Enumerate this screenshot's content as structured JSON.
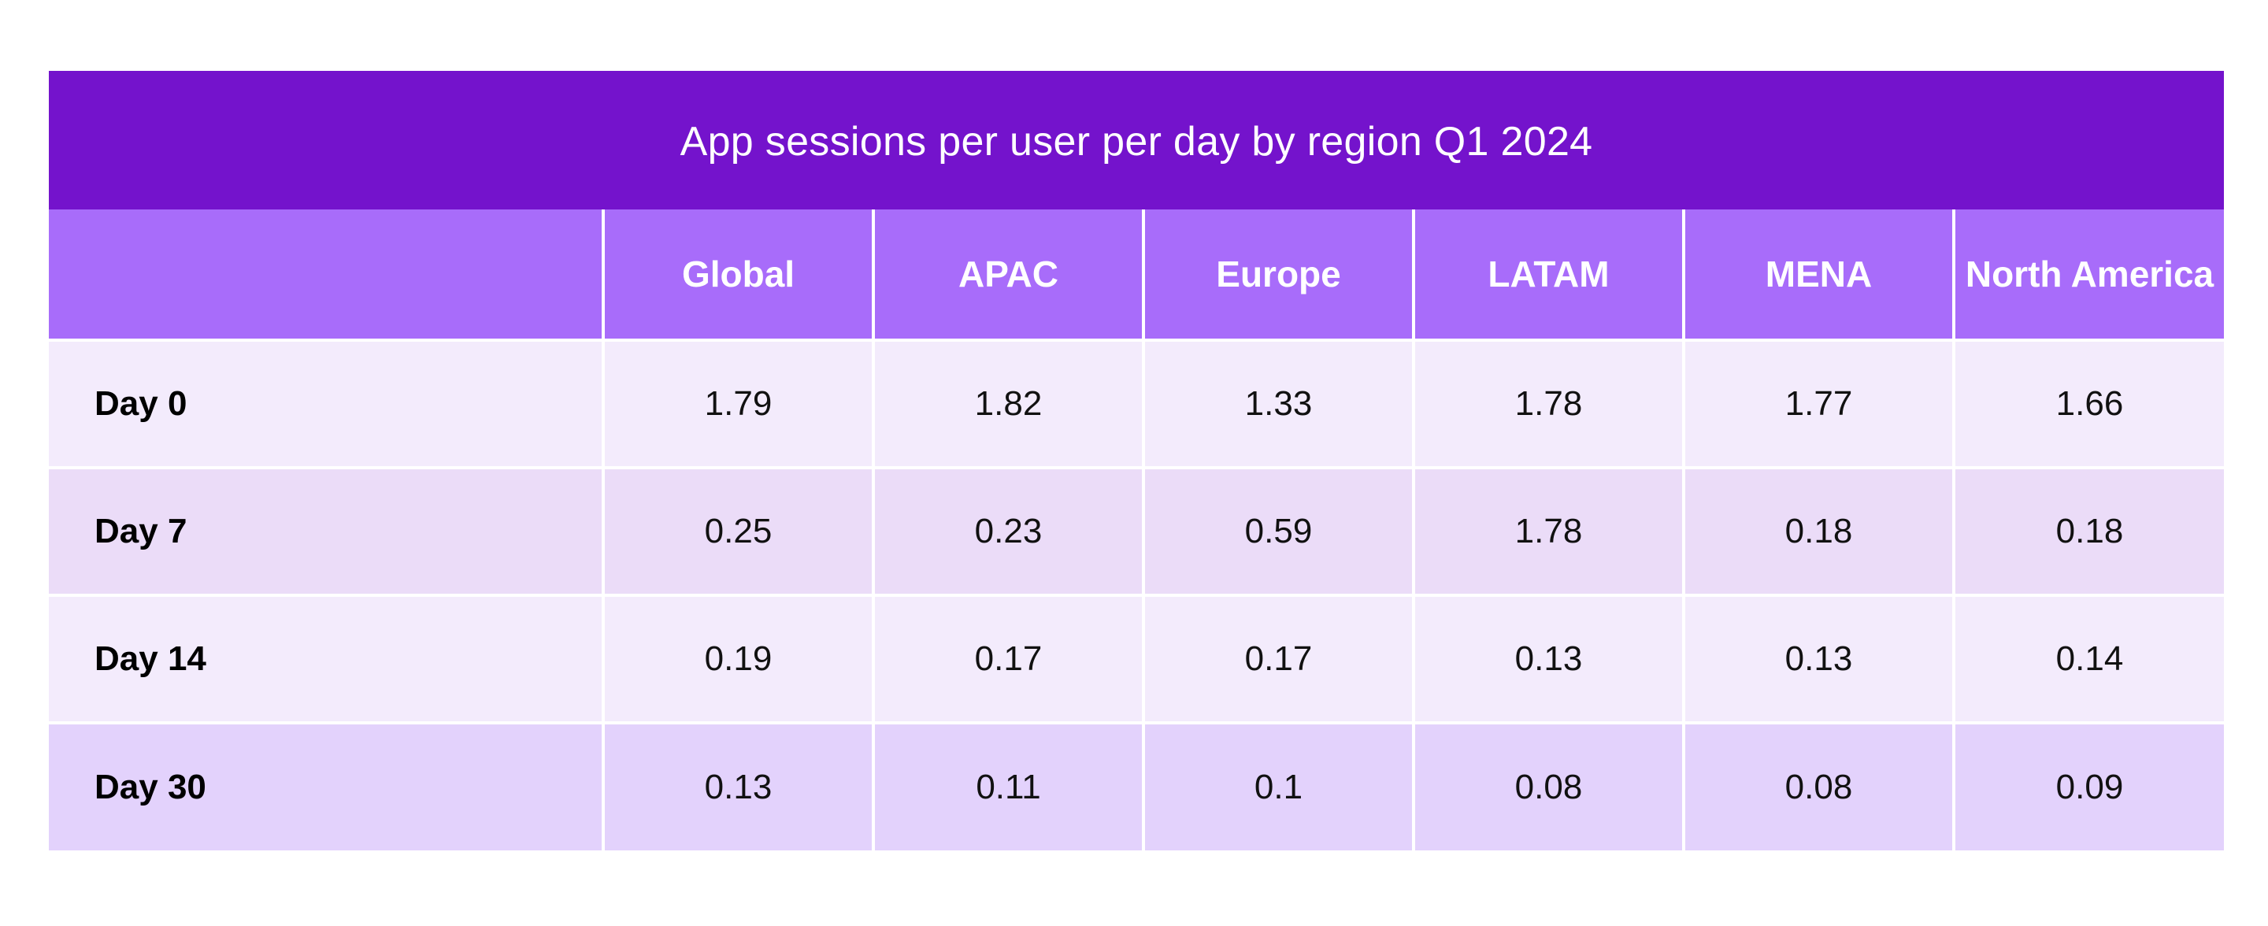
{
  "chart_data": {
    "type": "table",
    "title": "App sessions per user per day by region Q1 2024",
    "columns": [
      "",
      "Global",
      "APAC",
      "Europe",
      "LATAM",
      "MENA",
      "North America"
    ],
    "rows": [
      {
        "label": "Day 0",
        "values": [
          "1.79",
          "1.82",
          "1.33",
          "1.78",
          "1.77",
          "1.66"
        ]
      },
      {
        "label": "Day 7",
        "values": [
          "0.25",
          "0.23",
          "0.59",
          "1.78",
          "0.18",
          "0.18"
        ]
      },
      {
        "label": "Day 14",
        "values": [
          "0.19",
          "0.17",
          "0.17",
          "0.13",
          "0.13",
          "0.14"
        ]
      },
      {
        "label": "Day 30",
        "values": [
          "0.13",
          "0.11",
          "0.1",
          "0.08",
          "0.08",
          "0.09"
        ]
      }
    ]
  },
  "colors": {
    "title_bg": "#7413cc",
    "header_bg": "#a86cfa",
    "row_light": "#f3ebfc",
    "row_mid": "#ebdcf8",
    "row_last": "#e3d2fc"
  }
}
